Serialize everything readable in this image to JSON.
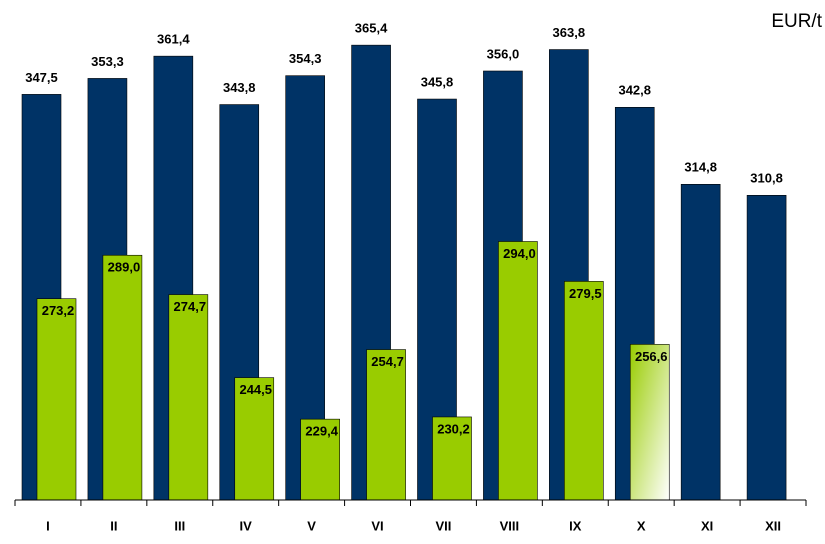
{
  "chart_data": {
    "type": "bar",
    "unit": "EUR/t",
    "categories": [
      "I",
      "II",
      "III",
      "IV",
      "V",
      "VI",
      "VII",
      "VIII",
      "IX",
      "X",
      "XI",
      "XII"
    ],
    "series": [
      {
        "color": "#003366",
        "values": [
          347.5,
          353.3,
          361.4,
          343.8,
          354.3,
          365.4,
          345.8,
          356.0,
          363.8,
          342.8,
          314.8,
          310.8
        ],
        "value_labels": [
          "347,5",
          "353,3",
          "361,4",
          "343,8",
          "354,3",
          "365,4",
          "345,8",
          "356,0",
          "363,8",
          "342,8",
          "314,8",
          "310,8"
        ]
      },
      {
        "color": "#99cc00",
        "values": [
          273.2,
          289.0,
          274.7,
          244.5,
          229.4,
          254.7,
          230.2,
          294.0,
          279.5,
          256.6,
          null,
          null
        ],
        "value_labels": [
          "273,2",
          "289,0",
          "274,7",
          "244,5",
          "229,4",
          "254,7",
          "230,2",
          "294,0",
          "279,5",
          "256,6",
          null,
          null
        ]
      }
    ],
    "ylim": [
      200,
      380
    ]
  }
}
